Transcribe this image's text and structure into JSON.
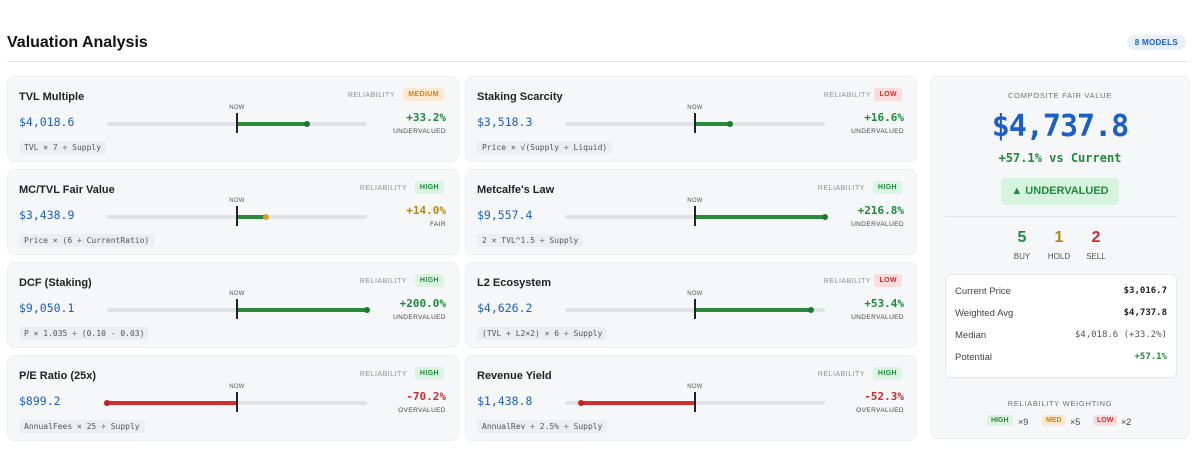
{
  "header": {
    "title": "Valuation Analysis",
    "models_badge": "8 MODELS"
  },
  "now_label": "NOW",
  "reliability_label": "RELIABILITY",
  "models": [
    {
      "name": "TVL Multiple",
      "reliability": "MEDIUM",
      "reliability_level": "medium",
      "value": "$4,018.6",
      "pct": "+33.2%",
      "verdict": "UNDERVALUED",
      "tone": "green",
      "formula": "TVL × 7 ÷ Supply",
      "bar_position": 0.77
    },
    {
      "name": "Staking Scarcity",
      "reliability": "LOW",
      "reliability_level": "low",
      "value": "$3,518.3",
      "pct": "+16.6%",
      "verdict": "UNDERVALUED",
      "tone": "green",
      "formula": "Price × √(Supply ÷ Liquid)",
      "bar_position": 0.635
    },
    {
      "name": "MC/TVL Fair Value",
      "reliability": "HIGH",
      "reliability_level": "high",
      "value": "$3,438.9",
      "pct": "+14.0%",
      "verdict": "FAIR",
      "tone": "amber",
      "formula": "Price × (6 ÷ CurrentRatio)",
      "bar_position": 0.615
    },
    {
      "name": "Metcalfe's Law",
      "reliability": "HIGH",
      "reliability_level": "high",
      "value": "$9,557.4",
      "pct": "+216.8%",
      "verdict": "UNDERVALUED",
      "tone": "green",
      "formula": "2 × TVL^1.5 ÷ Supply",
      "bar_position": 1.0
    },
    {
      "name": "DCF (Staking)",
      "reliability": "HIGH",
      "reliability_level": "high",
      "value": "$9,050.1",
      "pct": "+200.0%",
      "verdict": "UNDERVALUED",
      "tone": "green",
      "formula": "P × 1.035 ÷ (0.10 - 0.03)",
      "bar_position": 1.0
    },
    {
      "name": "L2 Ecosystem",
      "reliability": "LOW",
      "reliability_level": "low",
      "value": "$4,626.2",
      "pct": "+53.4%",
      "verdict": "UNDERVALUED",
      "tone": "green",
      "formula": "(TVL + L2×2) × 6 ÷ Supply",
      "bar_position": 0.97
    },
    {
      "name": "P/E Ratio (25x)",
      "reliability": "HIGH",
      "reliability_level": "high",
      "value": "$899.2",
      "pct": "-70.2%",
      "verdict": "OVERVALUED",
      "tone": "red",
      "formula": "AnnualFees × 25 ÷ Supply",
      "bar_position": 0.0
    },
    {
      "name": "Revenue Yield",
      "reliability": "HIGH",
      "reliability_level": "high",
      "value": "$1,438.8",
      "pct": "-52.3%",
      "verdict": "OVERVALUED",
      "tone": "red",
      "formula": "AnnualRev ÷ 2.5% ÷ Supply",
      "bar_position": 0.06
    }
  ],
  "composite": {
    "label": "COMPOSITE FAIR VALUE",
    "value": "$4,737.8",
    "pct_text": "+57.1% vs Current",
    "badge": "▲ UNDERVALUED",
    "buy_count": "5",
    "buy_label": "BUY",
    "hold_count": "1",
    "hold_label": "HOLD",
    "sell_count": "2",
    "sell_label": "SELL",
    "stats": [
      {
        "label": "Current Price",
        "value": "$3,016.7"
      },
      {
        "label": "Weighted Avg",
        "value": "$4,737.8"
      },
      {
        "label": "Median",
        "value": "$4,018.6 (+33.2%)"
      },
      {
        "label": "Potential",
        "value": "+57.1%"
      }
    ],
    "weighting_label": "RELIABILITY WEIGHTING",
    "weights": [
      {
        "badge": "HIGH",
        "mult": "×9"
      },
      {
        "badge": "MED",
        "mult": "×5"
      },
      {
        "badge": "LOW",
        "mult": "×2"
      }
    ]
  },
  "colors": {
    "accent_blue": "#1b5fc7",
    "positive": "#1d8a3a",
    "negative": "#cf2a2a",
    "neutral": "#b8860b"
  }
}
